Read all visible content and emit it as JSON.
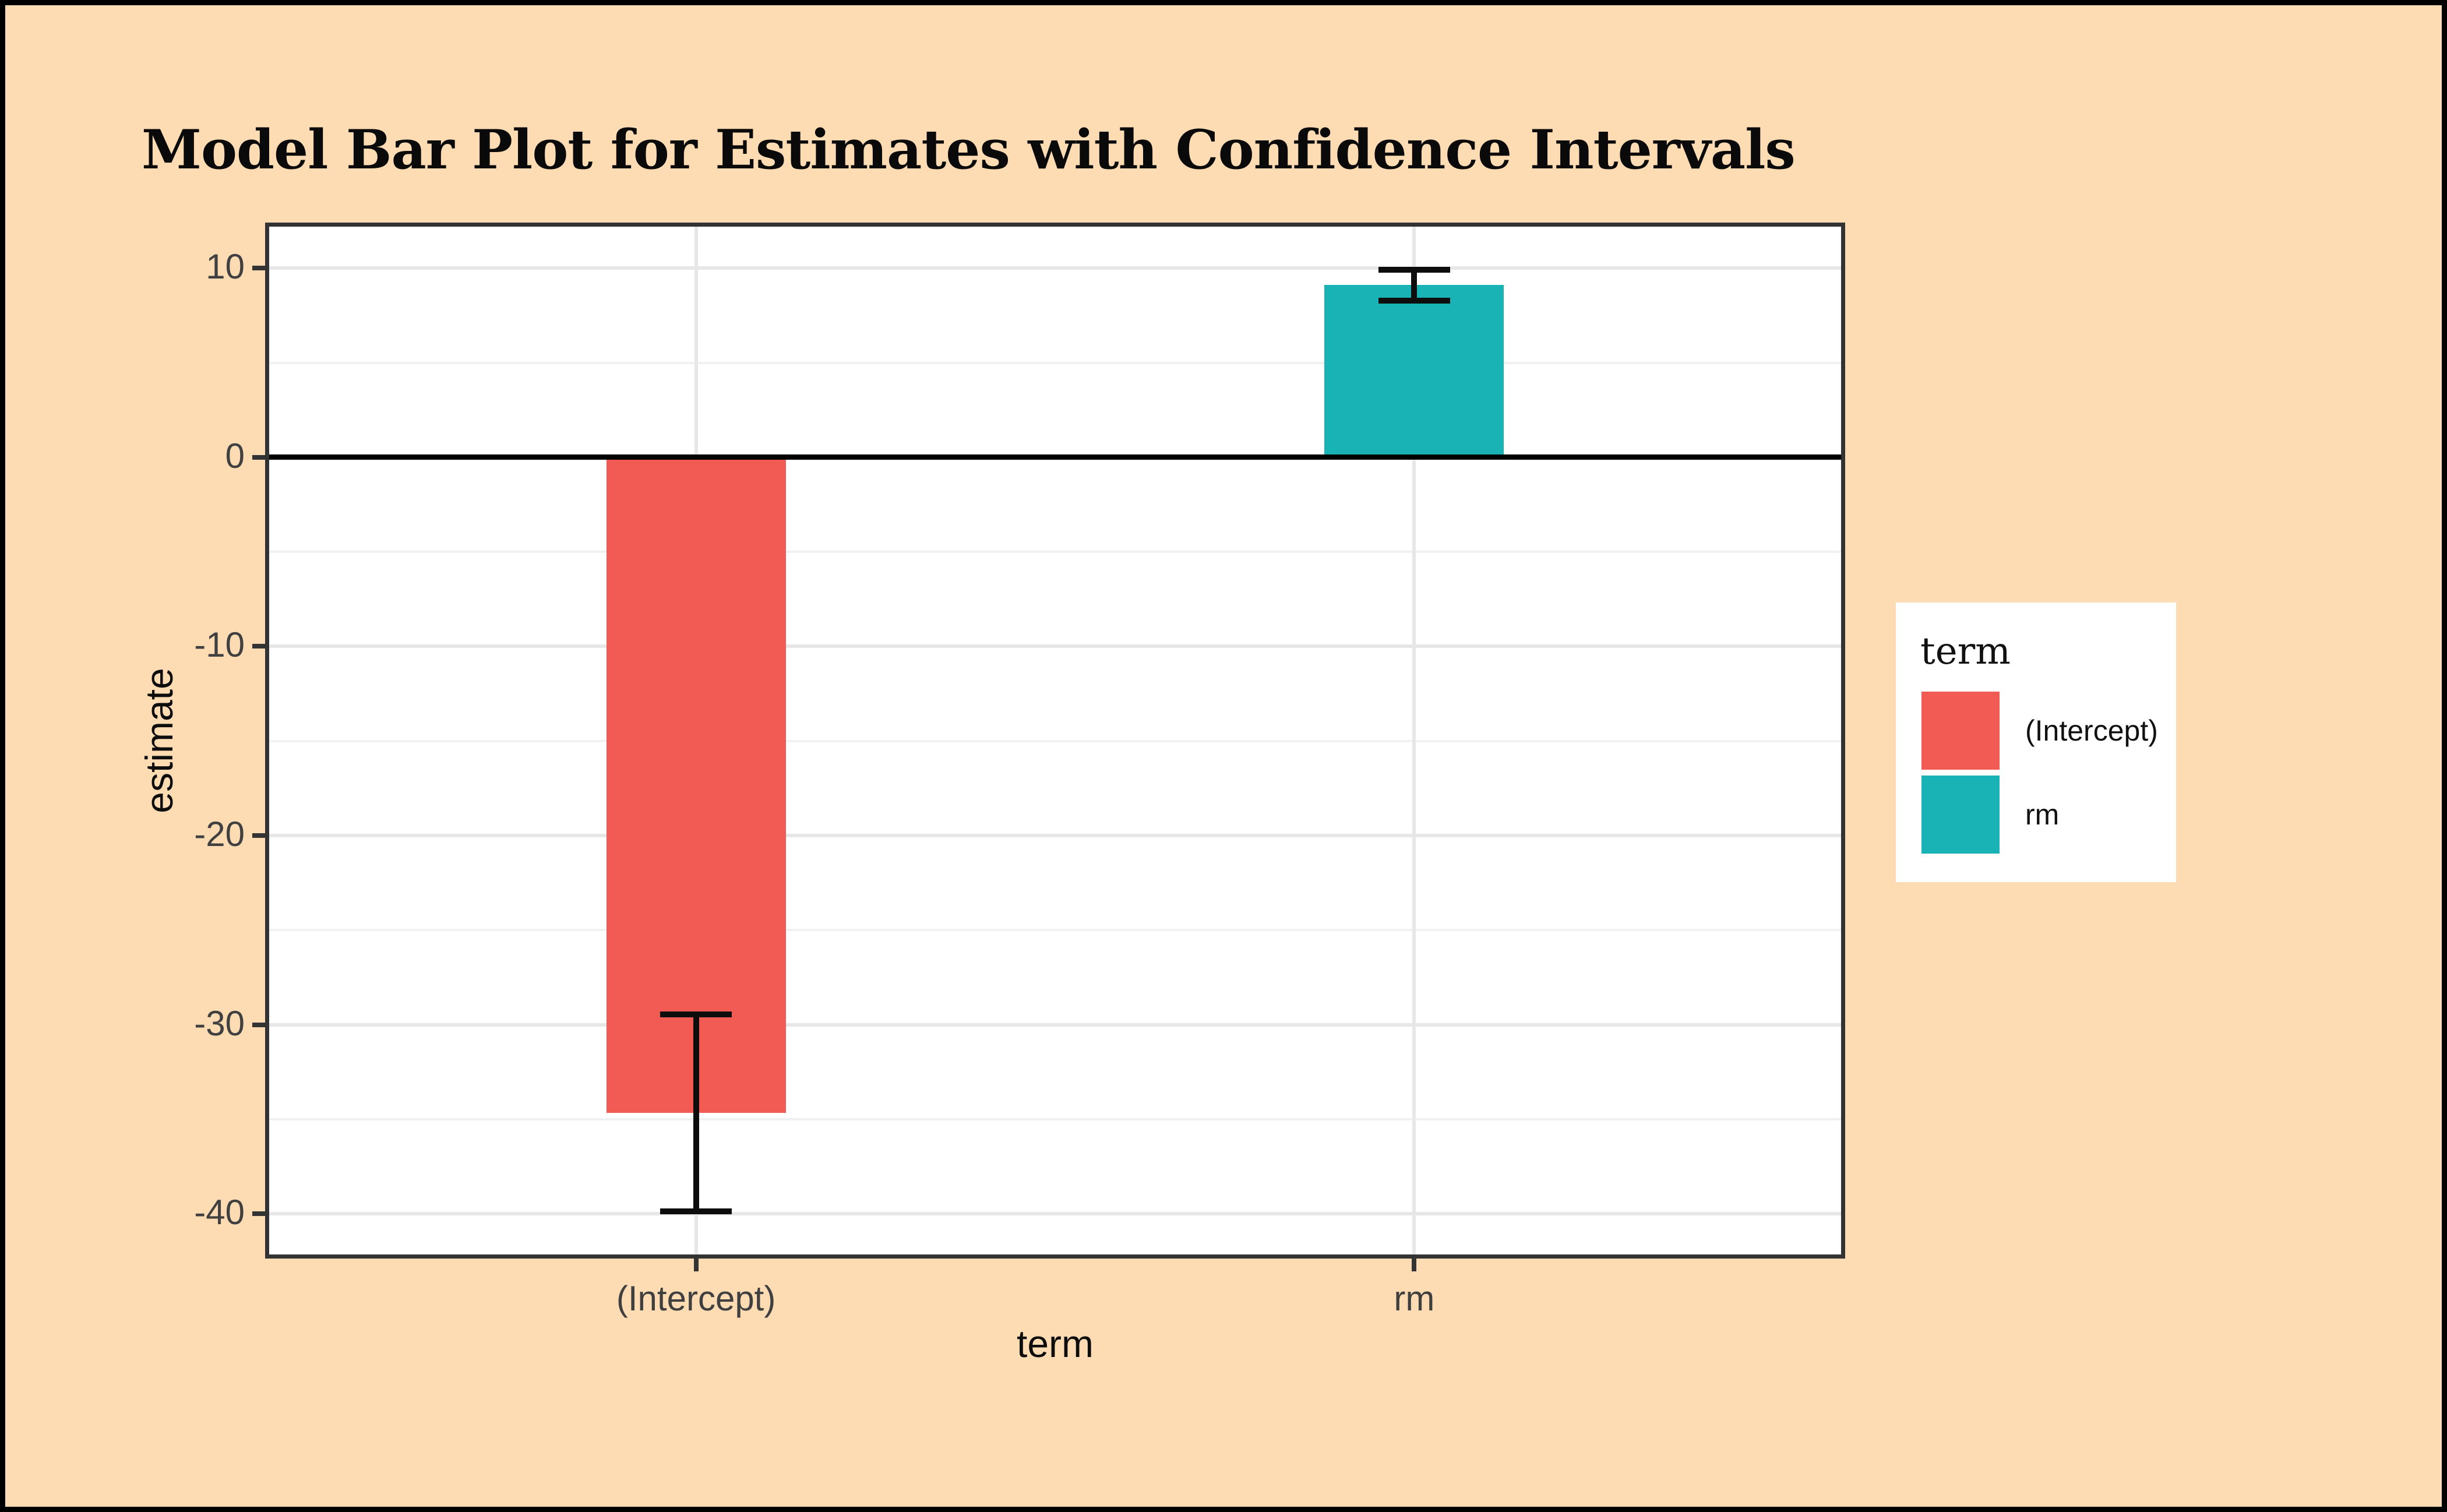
{
  "title": "Model Bar Plot for Estimates with Confidence Intervals",
  "axes": {
    "x_title": "term",
    "y_title": "estimate"
  },
  "legend": {
    "title": "term",
    "items": [
      {
        "label": "(Intercept)",
        "color": "#F25B54"
      },
      {
        "label": "rm",
        "color": "#1AB3B5"
      }
    ]
  },
  "colors": {
    "background": "#FDDBB3",
    "panel_background": "#FFFFFF",
    "panel_border": "#333333",
    "grid_major": "#E7E7E7",
    "grid_minor": "#F1F1F1",
    "zero_line": "#000000",
    "bar_intercept": "#F25B54",
    "bar_rm": "#1AB3B5",
    "tick_label": "#404040"
  },
  "chart_data": {
    "type": "bar",
    "title": "Model Bar Plot for Estimates with Confidence Intervals",
    "xlabel": "term",
    "ylabel": "estimate",
    "categories": [
      "(Intercept)",
      "rm"
    ],
    "series": [
      {
        "name": "estimate",
        "values": [
          -34.67,
          9.1
        ]
      }
    ],
    "error_bars": {
      "conf_low": [
        -39.88,
        8.28
      ],
      "conf_high": [
        -29.47,
        9.92
      ]
    },
    "bar_colors": [
      "#F25B54",
      "#1AB3B5"
    ],
    "ylim": [
      -42.37,
      12.41
    ],
    "y_major_ticks": [
      10,
      0,
      -10,
      -20,
      -30,
      -40
    ],
    "y_minor_ticks": [
      5,
      -5,
      -15,
      -25,
      -35
    ],
    "zero_line_at": 0,
    "grid": "major+minor horizontal, major vertical at categories",
    "legend_position": "right",
    "bar_width_category_units": 0.25,
    "errorbar_cap_width_category_units": 0.1
  }
}
